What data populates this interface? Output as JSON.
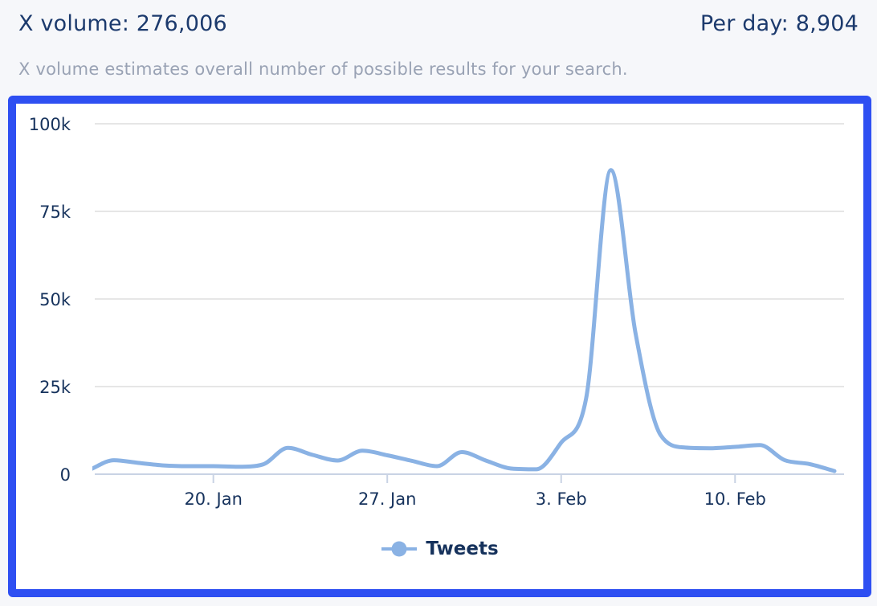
{
  "header": {
    "x_volume_label": "X volume:",
    "x_volume_value": "276,006",
    "per_day_label": "Per day:",
    "per_day_value": "8,904",
    "description": "X volume estimates overall number of possible results for your search."
  },
  "legend": {
    "label": "Tweets"
  },
  "colors": {
    "card_border": "#2e4ff2",
    "series_line": "#8ab2e4",
    "heading_text": "#1c3a6d",
    "subtitle_text": "#99a2b4",
    "axis_label_text": "#16325c",
    "gridline": "#e6e6e6",
    "axis_line": "#c9d3e4",
    "page_background": "#f6f7fa",
    "chart_background": "#ffffff"
  },
  "chart_data": {
    "type": "line",
    "title": "",
    "xlabel": "",
    "ylabel": "",
    "ylim": [
      0,
      100000
    ],
    "grid": true,
    "legend_position": "bottom",
    "yticks": [
      {
        "v": 0,
        "label": "0"
      },
      {
        "v": 25000,
        "label": "25k"
      },
      {
        "v": 50000,
        "label": "50k"
      },
      {
        "v": 75000,
        "label": "75k"
      },
      {
        "v": 100000,
        "label": "100k"
      }
    ],
    "xtick_labels": [
      "20. Jan",
      "27. Jan",
      "3. Feb",
      "10. Feb"
    ],
    "categories": [
      "15. Jan",
      "16. Jan",
      "17. Jan",
      "18. Jan",
      "19. Jan",
      "20. Jan",
      "21. Jan",
      "22. Jan",
      "23. Jan",
      "24. Jan",
      "25. Jan",
      "26. Jan",
      "27. Jan",
      "28. Jan",
      "29. Jan",
      "30. Jan",
      "31. Jan",
      "1. Feb",
      "2. Feb",
      "3. Feb",
      "4. Feb",
      "5. Feb",
      "6. Feb",
      "7. Feb",
      "8. Feb",
      "9. Feb",
      "10. Feb",
      "11. Feb",
      "12. Feb",
      "13. Feb",
      "14. Feb"
    ],
    "series": [
      {
        "name": "Tweets",
        "color": "#8ab2e4",
        "values": [
          1206,
          4000,
          3200,
          2500,
          2300,
          2300,
          2100,
          2800,
          7500,
          5500,
          3900,
          6700,
          5400,
          3800,
          2300,
          6300,
          3800,
          1600,
          1400,
          9000,
          21500,
          86800,
          40000,
          11200,
          7600,
          7400,
          7800,
          8300,
          4000,
          2900,
          900
        ]
      }
    ],
    "total": 276006,
    "per_day_average": 8904
  }
}
